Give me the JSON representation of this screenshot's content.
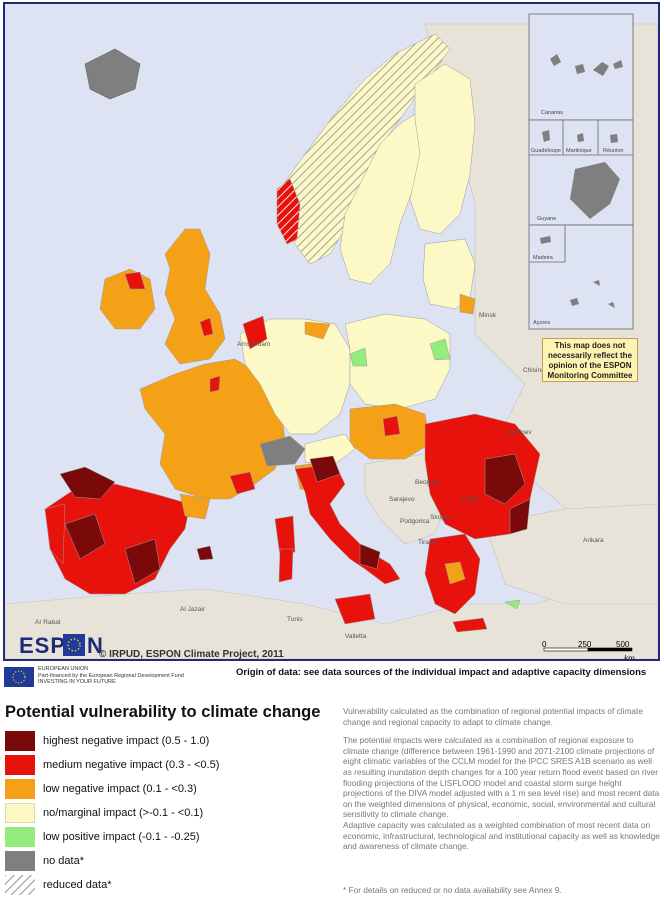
{
  "map": {
    "credit": "© IRPUD, ESPON Climate Project, 2011",
    "logo_text": "ESP",
    "logo_text_end": "N",
    "disclaimer": [
      "This map does not",
      "necessarily reflect the",
      "opinion of the ESPON",
      "Monitoring Committee"
    ],
    "insets": [
      "Canarias",
      "Guadeloupe",
      "Martinique",
      "Réunion",
      "Guyane",
      "Madeira",
      "Açores"
    ],
    "cities": [
      "Minsk",
      "Kishinev",
      "Beograd",
      "Sarajevo",
      "Podgorica",
      "Tirana",
      "Skopje",
      "Sofiya",
      "Ankara",
      "Al Jazair",
      "Tunis",
      "Valletta",
      "Ar Rabat",
      "Amsterdam",
      "Chisinau"
    ],
    "scalebar": {
      "ticks": [
        "0",
        "250",
        "500"
      ],
      "unit": "km"
    },
    "colors": {
      "highest": "#7a0a0a",
      "medium": "#e8120d",
      "low": "#f5a117",
      "marginal": "#fdf9c6",
      "positive": "#93ec7c",
      "nodata": "#7f7f7f",
      "sea": "#dde3f2",
      "nonespon_land": "#e8e3d9"
    }
  },
  "eu": {
    "lines": [
      "EUROPEAN UNION",
      "Part-financed by the European Regional Development Fund",
      "INVESTING IN YOUR FUTURE"
    ]
  },
  "origin": "Origin of data: see data sources of the individual impact and adaptive capacity dimensions",
  "legend": {
    "title": "Potential vulnerability to climate change",
    "items": [
      {
        "label": "highest negative impact (0.5 - 1.0)",
        "color": "#7a0a0a"
      },
      {
        "label": "medium negative impact (0.3 - <0.5)",
        "color": "#e8120d"
      },
      {
        "label": "low negative impact (0.1 - <0.3)",
        "color": "#f5a117"
      },
      {
        "label": "no/marginal impact (>-0.1 - <0.1)",
        "color": "#fdf9c6"
      },
      {
        "label": "low positive impact (-0.1 - -0.25)",
        "color": "#93ec7c"
      },
      {
        "label": "no data*",
        "color": "#7f7f7f"
      },
      {
        "label": "reduced data*",
        "color": "hatch"
      }
    ]
  },
  "description": {
    "p1": "Vulnerability calculated as the combination of regional potential impacts of climate change and regional capacity to adapt to climate change.",
    "p2": "The potential impacts were calculated as a combination of regional exposure to climate change (difference between 1961-1990 and 2071-2100 climate projections of eight climatic variables of the CCLM model for the IPCC SRES A1B scenario as well as resulting inundation depth changes for a 100 year return flood event based on river flooding projections of the LISFLOOD model and coastal storm surge height projections of the DIVA model adjusted with a 1 m sea level rise) and most recent data on the weighted dimensions of physical, economic, social, environmental and cultural sensitivity to climate change.",
    "p3": "Adaptive capacity was calculated as a weighted combination of most recent data on economic, infrastructural, technological and institutional capacity as well as knowledge and awareness of climate change.",
    "footnote": "* For details on reduced or no data availability see Annex 9."
  }
}
